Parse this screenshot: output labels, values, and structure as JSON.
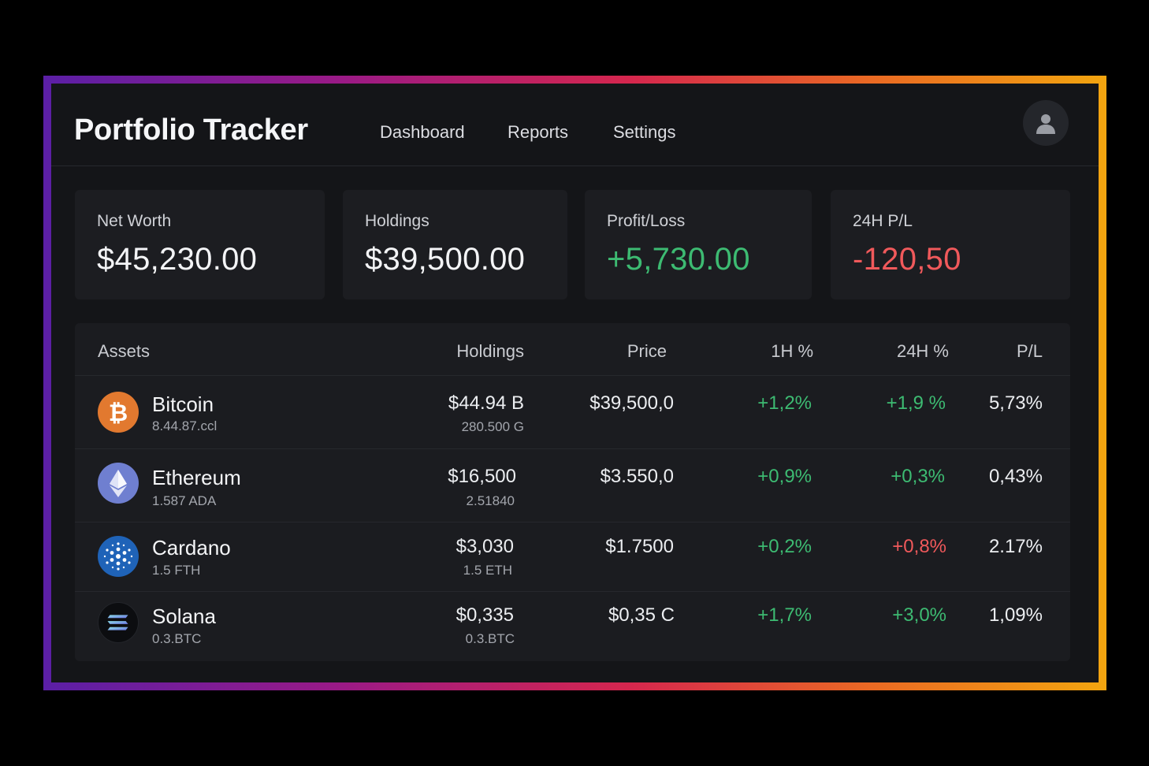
{
  "header": {
    "title": "Portfolio Tracker",
    "nav": [
      "Dashboard",
      "Reports",
      "Settings"
    ],
    "avatar_icon": "user-icon"
  },
  "summary": [
    {
      "label": "Net Worth",
      "value": "$45,230.00",
      "tone": "neutral"
    },
    {
      "label": "Holdings",
      "value": "$39,500.00",
      "tone": "neutral"
    },
    {
      "label": "Profit/Loss",
      "value": "+5,730.00",
      "tone": "positive"
    },
    {
      "label": "24H P/L",
      "value": "-120,50",
      "tone": "negative"
    }
  ],
  "table": {
    "headers": [
      "Assets",
      "Holdings",
      "Price",
      "1H %",
      "24H %",
      "P/L"
    ],
    "rows": [
      {
        "icon": "bitcoin-icon",
        "name": "Bitcoin",
        "sub": "8.44.87.ccl",
        "holdings": "$44.94 B",
        "holdings_sub": "280.500 G",
        "price": "$39,500,0",
        "h1": "+1,2%",
        "h24": "+1,9 %",
        "pl": "5,73%",
        "h1_tone": "positive",
        "h24_tone": "positive"
      },
      {
        "icon": "ethereum-icon",
        "name": "Ethereum",
        "sub": "1.587 ADA",
        "holdings": "$16,500",
        "holdings_sub": "2.51840",
        "price": "$3.550,0",
        "h1": "+0,9%",
        "h24": "+0,3%",
        "pl": "0,43%",
        "h1_tone": "positive",
        "h24_tone": "positive"
      },
      {
        "icon": "cardano-icon",
        "name": "Cardano",
        "sub": "1.5 FTH",
        "holdings": "$3,030",
        "holdings_sub": "1.5 ETH",
        "price": "$1.7500",
        "h1": "+0,2%",
        "h24": "+0,8%",
        "pl": "2.17%",
        "h1_tone": "positive",
        "h24_tone": "negative"
      },
      {
        "icon": "solana-icon",
        "name": "Solana",
        "sub": "0.3.BTC",
        "holdings": "$0,335",
        "holdings_sub": "0.3.BTC",
        "price": "$0,35 C",
        "h1": "+1,7%",
        "h24": "+3,0%",
        "pl": "1,09%",
        "h1_tone": "positive",
        "h24_tone": "positive"
      }
    ]
  },
  "colors": {
    "positive": "#3dbb72",
    "negative": "#f0595b",
    "frame_gradient": [
      "#5b1fa6",
      "#d5264e",
      "#f2a50f"
    ],
    "bitcoin": "#e2792f",
    "ethereum": "#6f7fd0",
    "cardano": "#1f63b8"
  }
}
